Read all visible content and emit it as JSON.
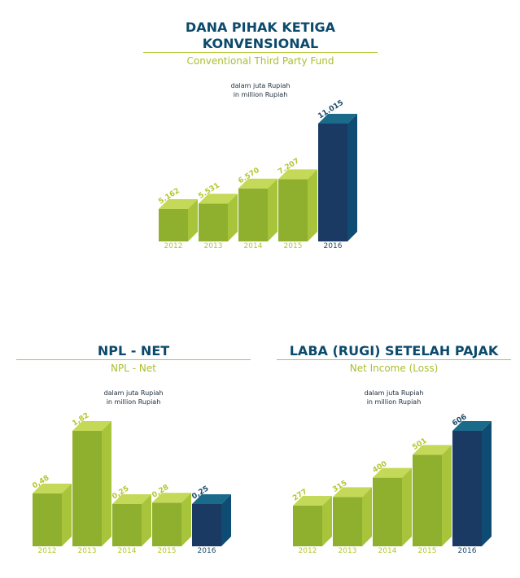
{
  "colors": {
    "bar_front": "#8fb02e",
    "bar_side": "#a8c43b",
    "bar_top": "#c4d957",
    "highlight_front": "#1a3a63",
    "highlight_side": "#0f4c74",
    "highlight_top": "#1a6a8a",
    "label_green": "#b5c631",
    "label_dark": "#1d4b6b",
    "title": "#0b4a6b",
    "rule": "#b3c536"
  },
  "charts": [
    {
      "title_lines": [
        "DANA PIHAK KETIGA",
        "KONVENSIONAL"
      ],
      "subtitle": "Conventional Third Party Fund",
      "unit_lines": [
        "dalam juta Rupiah",
        "in million Rupiah"
      ]
    },
    {
      "title_lines": [
        "NPL - NET"
      ],
      "subtitle": "NPL - Net",
      "unit_lines": [
        "dalam juta Rupiah",
        "in million Rupiah"
      ]
    },
    {
      "title_lines": [
        "LABA (RUGI) SETELAH PAJAK"
      ],
      "subtitle": "Net Income (Loss)",
      "unit_lines": [
        "dalam juta Rupiah",
        "in million Rupiah"
      ]
    }
  ],
  "chart_data": [
    {
      "type": "bar",
      "title": "DANA PIHAK KETIGA KONVENSIONAL",
      "categories": [
        "2012",
        "2013",
        "2014",
        "2015",
        "2016"
      ],
      "values": [
        5162,
        5531,
        6570,
        7207,
        11015
      ],
      "value_labels": [
        "5.162",
        "5.531",
        "6.570",
        "7.207",
        "11.015"
      ],
      "highlight_index": 4
    },
    {
      "type": "bar",
      "title": "NPL - NET",
      "categories": [
        "2012",
        "2013",
        "2014",
        "2015",
        "2016"
      ],
      "values": [
        0.48,
        1.82,
        0.25,
        0.28,
        0.25
      ],
      "value_labels": [
        "0,48",
        "1,82",
        "0,25",
        "0,28",
        "0,25"
      ],
      "highlight_index": 4
    },
    {
      "type": "bar",
      "title": "LABA (RUGI) SETELAH PAJAK",
      "categories": [
        "2012",
        "2013",
        "2014",
        "2015",
        "2016"
      ],
      "values": [
        277,
        315,
        400,
        501,
        606
      ],
      "value_labels": [
        "277",
        "315",
        "400",
        "501",
        "606"
      ],
      "highlight_index": 4
    }
  ]
}
